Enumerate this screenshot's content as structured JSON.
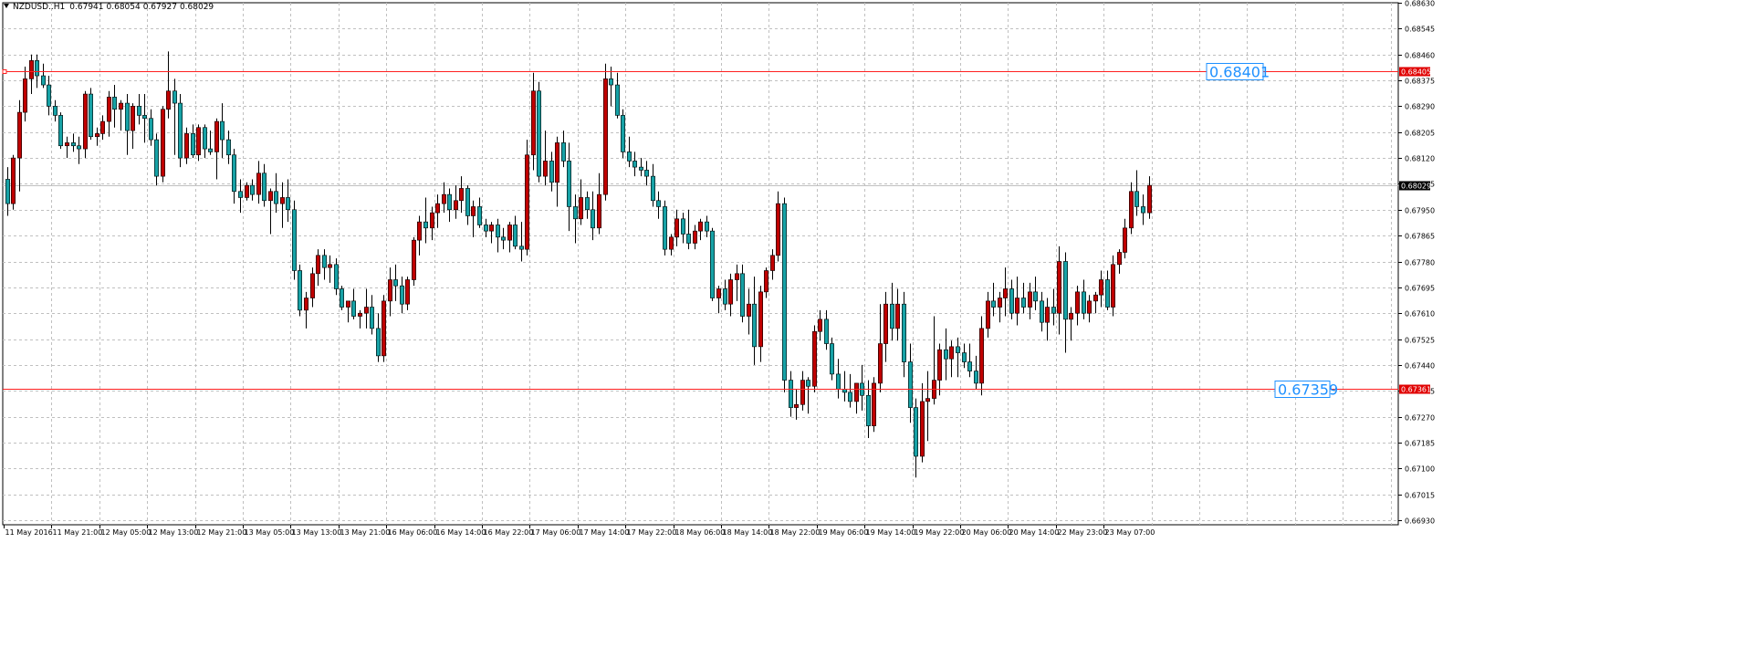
{
  "header": {
    "symbol": "NZDUSD..H1",
    "open": "0.67941",
    "high": "0.68054",
    "low": "0.67927",
    "close": "0.68029"
  },
  "colors": {
    "bull": "#c00000",
    "bear": "#17a2a6",
    "wick": "#000000",
    "grid": "#c0c0c0",
    "hline": "#ff2020",
    "bidline": "#c0c0c0",
    "label_text": "#1e90ff"
  },
  "chart_data": {
    "type": "candlestick",
    "ylim": [
      0.6693,
      0.6863
    ],
    "y_ticks": [
      "0.68630",
      "0.68545",
      "0.68460",
      "0.68375",
      "0.68290",
      "0.68205",
      "0.68120",
      "0.68035",
      "0.67950",
      "0.67865",
      "0.67780",
      "0.67695",
      "0.67610",
      "0.67525",
      "0.67440",
      "0.67355",
      "0.67270",
      "0.67185",
      "0.67100",
      "0.67015",
      "0.66930"
    ],
    "x_labels": [
      "11 May 2016",
      "11 May 21:00",
      "12 May 05:00",
      "12 May 13:00",
      "12 May 21:00",
      "13 May 05:00",
      "13 May 13:00",
      "13 May 21:00",
      "16 May 06:00",
      "16 May 14:00",
      "16 May 22:00",
      "17 May 06:00",
      "17 May 14:00",
      "17 May 22:00",
      "18 May 06:00",
      "18 May 14:00",
      "18 May 22:00",
      "19 May 06:00",
      "19 May 14:00",
      "19 May 22:00",
      "20 May 06:00",
      "20 May 14:00",
      "22 May 23:00",
      "23 May 07:00"
    ],
    "horizontal_lines": [
      {
        "price": 0.68405,
        "axis_label": "0.68405",
        "text_label": "0.68401"
      },
      {
        "price": 0.67361,
        "axis_label": "0.67361",
        "text_label": "0.67359"
      }
    ],
    "bid_line": {
      "price": 0.68029,
      "axis_label": "0.68029"
    },
    "ohlc": [
      [
        0.6805,
        0.6809,
        0.6793,
        0.6797
      ],
      [
        0.6797,
        0.6813,
        0.6795,
        0.6812
      ],
      [
        0.6812,
        0.6831,
        0.6801,
        0.6827
      ],
      [
        0.6827,
        0.6842,
        0.6824,
        0.6838
      ],
      [
        0.6838,
        0.6846,
        0.6833,
        0.6844
      ],
      [
        0.6844,
        0.6846,
        0.6835,
        0.6839
      ],
      [
        0.6839,
        0.6843,
        0.6835,
        0.6836
      ],
      [
        0.6836,
        0.6839,
        0.6826,
        0.6829
      ],
      [
        0.6829,
        0.6831,
        0.6824,
        0.6826
      ],
      [
        0.6826,
        0.6827,
        0.6815,
        0.6816
      ],
      [
        0.6816,
        0.6819,
        0.6812,
        0.6817
      ],
      [
        0.6817,
        0.682,
        0.6814,
        0.6816
      ],
      [
        0.6816,
        0.6819,
        0.681,
        0.6815
      ],
      [
        0.6815,
        0.6834,
        0.6812,
        0.6833
      ],
      [
        0.6833,
        0.6835,
        0.6818,
        0.6819
      ],
      [
        0.6819,
        0.6822,
        0.6816,
        0.682
      ],
      [
        0.682,
        0.6826,
        0.6818,
        0.6824
      ],
      [
        0.6824,
        0.6834,
        0.6819,
        0.6832
      ],
      [
        0.6832,
        0.6836,
        0.6822,
        0.6828
      ],
      [
        0.6828,
        0.6831,
        0.6821,
        0.683
      ],
      [
        0.683,
        0.6833,
        0.6813,
        0.6821
      ],
      [
        0.6821,
        0.683,
        0.6815,
        0.6829
      ],
      [
        0.6829,
        0.6833,
        0.6823,
        0.6826
      ],
      [
        0.6826,
        0.6833,
        0.6817,
        0.6825
      ],
      [
        0.6825,
        0.6828,
        0.6816,
        0.6818
      ],
      [
        0.6818,
        0.682,
        0.6803,
        0.6806
      ],
      [
        0.6806,
        0.6829,
        0.6804,
        0.6828
      ],
      [
        0.6828,
        0.6847,
        0.6825,
        0.6834
      ],
      [
        0.6834,
        0.6838,
        0.6813,
        0.683
      ],
      [
        0.683,
        0.6833,
        0.6809,
        0.6812
      ],
      [
        0.6812,
        0.6822,
        0.681,
        0.682
      ],
      [
        0.682,
        0.6823,
        0.6812,
        0.6813
      ],
      [
        0.6813,
        0.6823,
        0.6811,
        0.6822
      ],
      [
        0.6822,
        0.6823,
        0.6812,
        0.6815
      ],
      [
        0.6815,
        0.6821,
        0.6813,
        0.6814
      ],
      [
        0.6814,
        0.6825,
        0.6805,
        0.6824
      ],
      [
        0.6824,
        0.683,
        0.6812,
        0.6818
      ],
      [
        0.6818,
        0.6821,
        0.681,
        0.6813
      ],
      [
        0.6813,
        0.6815,
        0.6797,
        0.6801
      ],
      [
        0.6801,
        0.6805,
        0.6794,
        0.6799
      ],
      [
        0.6799,
        0.6804,
        0.6798,
        0.6803
      ],
      [
        0.6803,
        0.6805,
        0.6798,
        0.68
      ],
      [
        0.68,
        0.6811,
        0.6797,
        0.6807
      ],
      [
        0.6807,
        0.681,
        0.6796,
        0.6798
      ],
      [
        0.6798,
        0.6802,
        0.6787,
        0.6801
      ],
      [
        0.6801,
        0.6807,
        0.6794,
        0.6797
      ],
      [
        0.6797,
        0.6804,
        0.6789,
        0.6799
      ],
      [
        0.6799,
        0.6805,
        0.6791,
        0.6795
      ],
      [
        0.6795,
        0.6798,
        0.6772,
        0.6775
      ],
      [
        0.6775,
        0.6777,
        0.676,
        0.6762
      ],
      [
        0.6762,
        0.6768,
        0.6756,
        0.6766
      ],
      [
        0.6766,
        0.6776,
        0.6763,
        0.6774
      ],
      [
        0.6774,
        0.6782,
        0.677,
        0.678
      ],
      [
        0.678,
        0.6782,
        0.6772,
        0.6776
      ],
      [
        0.6776,
        0.678,
        0.6771,
        0.6777
      ],
      [
        0.6777,
        0.6779,
        0.6767,
        0.6769
      ],
      [
        0.6769,
        0.677,
        0.6762,
        0.6763
      ],
      [
        0.6763,
        0.6765,
        0.6758,
        0.6765
      ],
      [
        0.6765,
        0.6769,
        0.6759,
        0.676
      ],
      [
        0.676,
        0.6762,
        0.6756,
        0.6761
      ],
      [
        0.6761,
        0.6769,
        0.6756,
        0.6763
      ],
      [
        0.6763,
        0.6767,
        0.6754,
        0.6756
      ],
      [
        0.6756,
        0.6761,
        0.6745,
        0.6747
      ],
      [
        0.6747,
        0.6767,
        0.6745,
        0.6765
      ],
      [
        0.6765,
        0.6776,
        0.676,
        0.6772
      ],
      [
        0.6772,
        0.6777,
        0.6765,
        0.677
      ],
      [
        0.677,
        0.6773,
        0.6761,
        0.6764
      ],
      [
        0.6764,
        0.6773,
        0.6762,
        0.6772
      ],
      [
        0.6772,
        0.6786,
        0.677,
        0.6785
      ],
      [
        0.6785,
        0.6793,
        0.678,
        0.6791
      ],
      [
        0.6791,
        0.6799,
        0.6784,
        0.6789
      ],
      [
        0.6789,
        0.6796,
        0.6785,
        0.6794
      ],
      [
        0.6794,
        0.68,
        0.6789,
        0.6797
      ],
      [
        0.6797,
        0.6804,
        0.6794,
        0.68
      ],
      [
        0.68,
        0.6802,
        0.6791,
        0.6795
      ],
      [
        0.6795,
        0.6803,
        0.6792,
        0.6798
      ],
      [
        0.6798,
        0.6806,
        0.6794,
        0.6802
      ],
      [
        0.6802,
        0.6803,
        0.679,
        0.6793
      ],
      [
        0.6793,
        0.6798,
        0.6786,
        0.6796
      ],
      [
        0.6796,
        0.6799,
        0.6789,
        0.679
      ],
      [
        0.679,
        0.6792,
        0.6786,
        0.6788
      ],
      [
        0.6788,
        0.6791,
        0.6784,
        0.679
      ],
      [
        0.679,
        0.6792,
        0.6781,
        0.6786
      ],
      [
        0.6786,
        0.6789,
        0.6782,
        0.6785
      ],
      [
        0.6785,
        0.6791,
        0.6781,
        0.679
      ],
      [
        0.679,
        0.6793,
        0.6782,
        0.6783
      ],
      [
        0.6783,
        0.6791,
        0.6778,
        0.6782
      ],
      [
        0.6782,
        0.6818,
        0.678,
        0.6813
      ],
      [
        0.6813,
        0.684,
        0.6808,
        0.6834
      ],
      [
        0.6834,
        0.6837,
        0.6804,
        0.6806
      ],
      [
        0.6806,
        0.6821,
        0.6803,
        0.6811
      ],
      [
        0.6811,
        0.6814,
        0.6801,
        0.6804
      ],
      [
        0.6804,
        0.6819,
        0.6796,
        0.6817
      ],
      [
        0.6817,
        0.6821,
        0.6809,
        0.6811
      ],
      [
        0.6811,
        0.6817,
        0.6788,
        0.6796
      ],
      [
        0.6796,
        0.68,
        0.6784,
        0.6792
      ],
      [
        0.6792,
        0.6805,
        0.679,
        0.6799
      ],
      [
        0.6799,
        0.6801,
        0.6792,
        0.6795
      ],
      [
        0.6795,
        0.6801,
        0.6785,
        0.6789
      ],
      [
        0.6789,
        0.6807,
        0.6787,
        0.68
      ],
      [
        0.68,
        0.6843,
        0.6798,
        0.6838
      ],
      [
        0.6838,
        0.6842,
        0.6829,
        0.6836
      ],
      [
        0.6836,
        0.684,
        0.6825,
        0.6826
      ],
      [
        0.6826,
        0.6828,
        0.6812,
        0.6814
      ],
      [
        0.6814,
        0.6819,
        0.6809,
        0.6811
      ],
      [
        0.6811,
        0.6814,
        0.6806,
        0.6809
      ],
      [
        0.6809,
        0.6812,
        0.6806,
        0.6808
      ],
      [
        0.6808,
        0.6811,
        0.6803,
        0.6806
      ],
      [
        0.6806,
        0.681,
        0.6796,
        0.6798
      ],
      [
        0.6798,
        0.6801,
        0.6792,
        0.6796
      ],
      [
        0.6796,
        0.6798,
        0.678,
        0.6782
      ],
      [
        0.6782,
        0.6787,
        0.678,
        0.6786
      ],
      [
        0.6786,
        0.6795,
        0.6783,
        0.6792
      ],
      [
        0.6792,
        0.6794,
        0.6784,
        0.6787
      ],
      [
        0.6787,
        0.6795,
        0.6782,
        0.6784
      ],
      [
        0.6784,
        0.679,
        0.6782,
        0.6788
      ],
      [
        0.6788,
        0.6792,
        0.6785,
        0.6791
      ],
      [
        0.6791,
        0.6793,
        0.6786,
        0.6788
      ],
      [
        0.6788,
        0.6789,
        0.6765,
        0.6766
      ],
      [
        0.6766,
        0.677,
        0.6761,
        0.6769
      ],
      [
        0.6769,
        0.6772,
        0.6762,
        0.6764
      ],
      [
        0.6764,
        0.6774,
        0.676,
        0.6772
      ],
      [
        0.6772,
        0.6777,
        0.6765,
        0.6774
      ],
      [
        0.6774,
        0.6777,
        0.6758,
        0.676
      ],
      [
        0.676,
        0.6769,
        0.6754,
        0.6764
      ],
      [
        0.6764,
        0.6773,
        0.6744,
        0.675
      ],
      [
        0.675,
        0.677,
        0.6745,
        0.6768
      ],
      [
        0.6768,
        0.6776,
        0.6766,
        0.6775
      ],
      [
        0.6775,
        0.6782,
        0.6772,
        0.678
      ],
      [
        0.678,
        0.6801,
        0.6778,
        0.6797
      ],
      [
        0.6797,
        0.6799,
        0.6735,
        0.6739
      ],
      [
        0.6739,
        0.6742,
        0.6727,
        0.673
      ],
      [
        0.673,
        0.6736,
        0.6726,
        0.6731
      ],
      [
        0.6731,
        0.6742,
        0.6729,
        0.6739
      ],
      [
        0.6739,
        0.674,
        0.6728,
        0.6737
      ],
      [
        0.6737,
        0.6757,
        0.6735,
        0.6755
      ],
      [
        0.6755,
        0.6762,
        0.6752,
        0.6759
      ],
      [
        0.6759,
        0.6762,
        0.6749,
        0.6751
      ],
      [
        0.6751,
        0.6753,
        0.6739,
        0.6741
      ],
      [
        0.6741,
        0.6746,
        0.6733,
        0.6736
      ],
      [
        0.6736,
        0.6742,
        0.6732,
        0.6735
      ],
      [
        0.6735,
        0.6741,
        0.673,
        0.6732
      ],
      [
        0.6732,
        0.6738,
        0.6728,
        0.6738
      ],
      [
        0.6738,
        0.6744,
        0.6729,
        0.6734
      ],
      [
        0.6734,
        0.6739,
        0.672,
        0.6724
      ],
      [
        0.6724,
        0.674,
        0.6722,
        0.6738
      ],
      [
        0.6738,
        0.6764,
        0.6735,
        0.6751
      ],
      [
        0.6751,
        0.6768,
        0.6745,
        0.6764
      ],
      [
        0.6764,
        0.6771,
        0.6752,
        0.6756
      ],
      [
        0.6756,
        0.6769,
        0.6752,
        0.6764
      ],
      [
        0.6764,
        0.6768,
        0.674,
        0.6745
      ],
      [
        0.6745,
        0.6751,
        0.6725,
        0.673
      ],
      [
        0.673,
        0.6733,
        0.6707,
        0.6714
      ],
      [
        0.6714,
        0.6738,
        0.6712,
        0.6732
      ],
      [
        0.6732,
        0.6742,
        0.6719,
        0.6733
      ],
      [
        0.6733,
        0.676,
        0.6731,
        0.6739
      ],
      [
        0.6739,
        0.6751,
        0.6734,
        0.6749
      ],
      [
        0.6749,
        0.6756,
        0.6739,
        0.6746
      ],
      [
        0.6746,
        0.6752,
        0.674,
        0.675
      ],
      [
        0.675,
        0.6753,
        0.674,
        0.6748
      ],
      [
        0.6748,
        0.6751,
        0.6743,
        0.6745
      ],
      [
        0.6745,
        0.6751,
        0.674,
        0.6742
      ],
      [
        0.6742,
        0.6747,
        0.6736,
        0.6738
      ],
      [
        0.6738,
        0.676,
        0.6734,
        0.6756
      ],
      [
        0.6756,
        0.6768,
        0.6753,
        0.6765
      ],
      [
        0.6765,
        0.6771,
        0.676,
        0.6763
      ],
      [
        0.6763,
        0.6768,
        0.6758,
        0.6766
      ],
      [
        0.6766,
        0.6776,
        0.676,
        0.6769
      ],
      [
        0.6769,
        0.6772,
        0.6759,
        0.6761
      ],
      [
        0.6761,
        0.6773,
        0.6757,
        0.6766
      ],
      [
        0.6766,
        0.6771,
        0.6761,
        0.6763
      ],
      [
        0.6763,
        0.6771,
        0.6759,
        0.6768
      ],
      [
        0.6768,
        0.6773,
        0.6762,
        0.6765
      ],
      [
        0.6765,
        0.6768,
        0.6755,
        0.6758
      ],
      [
        0.6758,
        0.6766,
        0.6752,
        0.6763
      ],
      [
        0.6763,
        0.6769,
        0.6757,
        0.6761
      ],
      [
        0.6761,
        0.6783,
        0.6754,
        0.6778
      ],
      [
        0.6778,
        0.6781,
        0.6748,
        0.6759
      ],
      [
        0.6759,
        0.6763,
        0.6752,
        0.6761
      ],
      [
        0.6761,
        0.677,
        0.6757,
        0.6768
      ],
      [
        0.6768,
        0.6772,
        0.6759,
        0.6761
      ],
      [
        0.6761,
        0.6767,
        0.6758,
        0.6765
      ],
      [
        0.6765,
        0.6768,
        0.6761,
        0.6767
      ],
      [
        0.6767,
        0.6775,
        0.6763,
        0.6772
      ],
      [
        0.6772,
        0.6775,
        0.6762,
        0.6763
      ],
      [
        0.6763,
        0.678,
        0.676,
        0.6777
      ],
      [
        0.6777,
        0.6782,
        0.6774,
        0.6781
      ],
      [
        0.6781,
        0.6792,
        0.6779,
        0.6789
      ],
      [
        0.6789,
        0.6804,
        0.6787,
        0.6801
      ],
      [
        0.6801,
        0.6808,
        0.6793,
        0.6796
      ],
      [
        0.6796,
        0.68,
        0.679,
        0.6794
      ],
      [
        0.6794,
        0.6806,
        0.6792,
        0.6803
      ]
    ]
  }
}
